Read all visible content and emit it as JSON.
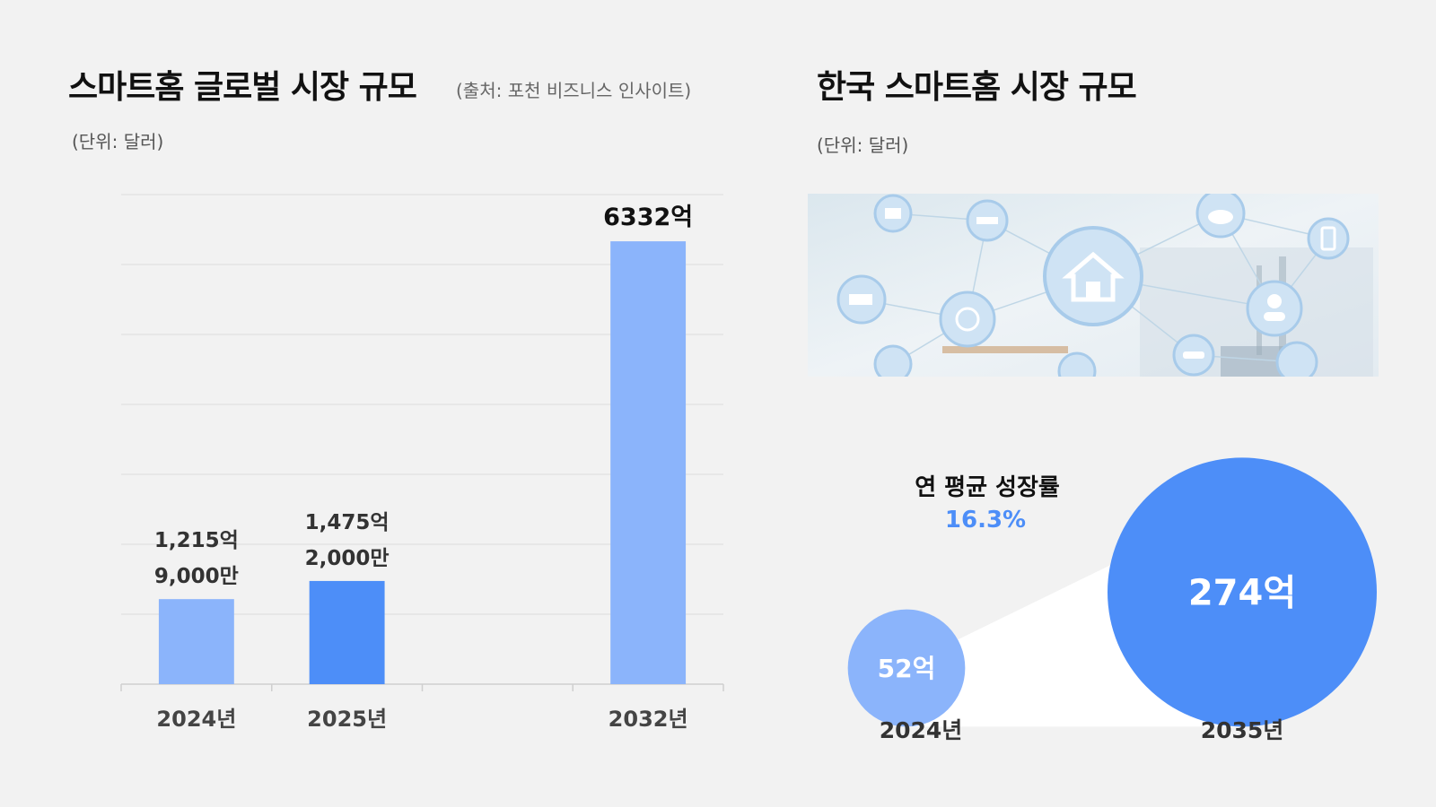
{
  "left": {
    "title": "스마트홈 글로벌 시장 규모",
    "source": "(출처: 포천 비즈니스 인사이트)",
    "unit": "(단위: 달러)"
  },
  "right": {
    "title": "한국 스마트홈 시장 규모",
    "unit": "(단위: 달러)",
    "cagr_label": "연 평균 성장률",
    "cagr_value": "16.3%"
  },
  "colors": {
    "light_blue": "#8bb4fb",
    "blue": "#4d8ef8",
    "grid": "#dcdcdc"
  },
  "chart_data": [
    {
      "type": "bar",
      "categories": [
        "2024년",
        "2025년",
        "",
        "2032년"
      ],
      "values": [
        1215.9,
        1475.2,
        null,
        6332
      ],
      "value_labels": [
        [
          "1,215억",
          "9,000만"
        ],
        [
          "1,475억",
          "2,000만"
        ],
        [],
        [
          "6332억"
        ]
      ],
      "bar_colors": [
        "light_blue",
        "blue",
        null,
        "light_blue"
      ],
      "unit": "억 달러",
      "grid": true,
      "title": "스마트홈 글로벌 시장 규모"
    },
    {
      "type": "bubble",
      "categories": [
        "2024년",
        "2035년"
      ],
      "values": [
        52,
        274
      ],
      "value_labels": [
        "52억",
        "274억"
      ],
      "unit": "억 달러",
      "title": "한국 스마트홈 시장 규모"
    }
  ]
}
